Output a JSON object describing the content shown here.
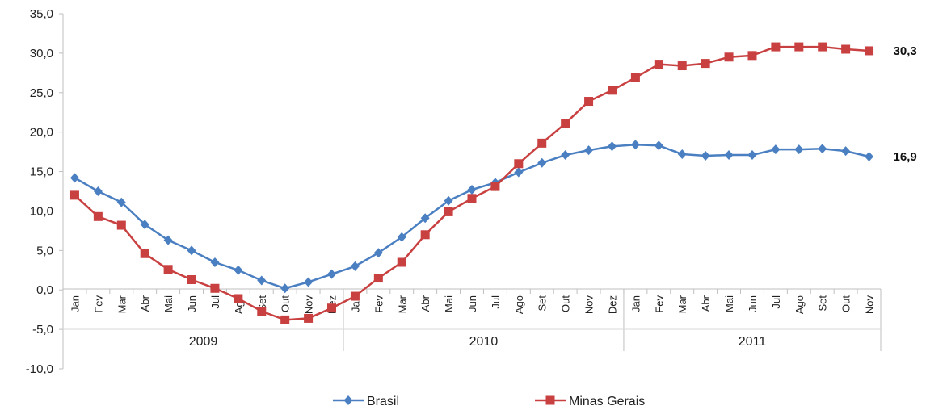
{
  "chart_data": {
    "type": "line",
    "title": "",
    "xlabel": "",
    "ylabel": "",
    "ylim": [
      -10,
      35
    ],
    "y_ticks": [
      "35,0",
      "30,0",
      "25,0",
      "20,0",
      "15,0",
      "10,0",
      "5,0",
      "0,0",
      "-5,0",
      "-10,0"
    ],
    "y_tick_values": [
      35,
      30,
      25,
      20,
      15,
      10,
      5,
      0,
      -5,
      -10
    ],
    "grid": false,
    "legend_position": "bottom",
    "categories": [
      "Jan",
      "Fev",
      "Mar",
      "Abr",
      "Mai",
      "Jun",
      "Jul",
      "Ago",
      "Set",
      "Out",
      "Nov",
      "Dez",
      "Jan",
      "Fev",
      "Mar",
      "Abr",
      "Mai",
      "Jun",
      "Jul",
      "Ago",
      "Set",
      "Out",
      "Nov",
      "Dez",
      "Jan",
      "Fev",
      "Mar",
      "Abr",
      "Mai",
      "Jun",
      "Jul",
      "Ago",
      "Set",
      "Out",
      "Nov"
    ],
    "year_groups": [
      {
        "label": "2009",
        "count": 12
      },
      {
        "label": "2010",
        "count": 12
      },
      {
        "label": "2011",
        "count": 11
      }
    ],
    "series": [
      {
        "name": "Brasil",
        "color": "#4a7fc1",
        "marker": "diamond",
        "values": [
          14.2,
          12.5,
          11.1,
          8.3,
          6.3,
          5.0,
          3.5,
          2.5,
          1.2,
          0.2,
          1.0,
          2.0,
          3.0,
          4.7,
          6.7,
          9.1,
          11.3,
          12.7,
          13.6,
          14.9,
          16.1,
          17.1,
          17.7,
          18.2,
          18.4,
          18.3,
          17.2,
          17.0,
          17.1,
          17.1,
          17.8,
          17.8,
          17.9,
          17.6,
          16.9
        ],
        "end_label": "16,9"
      },
      {
        "name": "Minas Gerais",
        "color": "#c84040",
        "marker": "square",
        "values": [
          12.0,
          9.3,
          8.2,
          4.6,
          2.6,
          1.3,
          0.2,
          -1.1,
          -2.7,
          -3.8,
          -3.6,
          -2.3,
          -0.8,
          1.5,
          3.5,
          7.0,
          9.9,
          11.6,
          13.1,
          16.0,
          18.6,
          21.1,
          23.9,
          25.3,
          26.9,
          28.6,
          28.4,
          28.7,
          29.5,
          29.7,
          30.8,
          30.8,
          30.8,
          30.5,
          30.3
        ],
        "end_label": "30,3"
      }
    ]
  }
}
